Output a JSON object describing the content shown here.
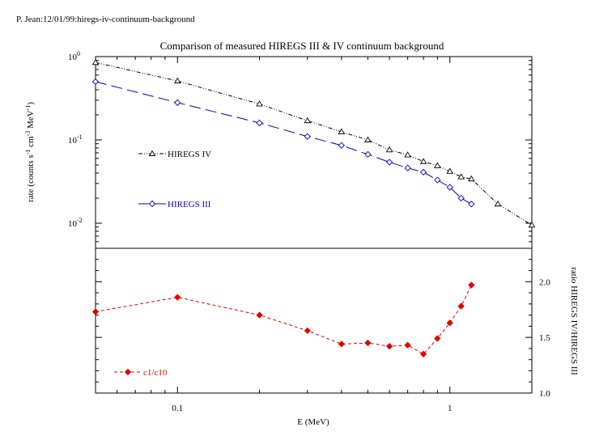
{
  "header_note": "P. Jean:12/01/99:hiregs-iv-continuum-background",
  "chart_data": [
    {
      "type": "line",
      "panel": "top",
      "title": "Comparison of measured HIREGS III & IV continuum background",
      "xlabel": "E (MeV)",
      "ylabel_main": "rate (counts s",
      "ylabel_sup1": "-1",
      "ylabel_mid1": " cm",
      "ylabel_sup2": "-3",
      "ylabel_mid2": " MeV",
      "ylabel_sup3": "-1",
      "ylabel_end": ")",
      "x_scale": "log",
      "y_scale": "log",
      "xlim": [
        0.05,
        2.0
      ],
      "ylim": [
        0.005,
        1.0
      ],
      "yticks": [
        {
          "base": "10",
          "exp": "0",
          "value": 1.0
        },
        {
          "base": "10",
          "exp": "-1",
          "value": 0.1
        },
        {
          "base": "10",
          "exp": "-2",
          "value": 0.01
        }
      ],
      "legend_placement": "center-left",
      "series": [
        {
          "name": "HIREGS IV",
          "color": "#000000",
          "marker": "triangle",
          "dash": "dash-dot",
          "x": [
            0.05,
            0.1,
            0.2,
            0.3,
            0.4,
            0.5,
            0.6,
            0.7,
            0.8,
            0.9,
            1.0,
            1.1,
            1.2,
            1.5,
            2.0
          ],
          "y": [
            0.85,
            0.51,
            0.27,
            0.17,
            0.125,
            0.1,
            0.076,
            0.066,
            0.055,
            0.049,
            0.042,
            0.036,
            0.034,
            0.017,
            0.0095
          ]
        },
        {
          "name": "HIREGS III",
          "color": "#0000cc",
          "marker": "diamond",
          "dash": "long-dash",
          "x": [
            0.05,
            0.1,
            0.2,
            0.3,
            0.4,
            0.5,
            0.6,
            0.7,
            0.8,
            0.9,
            1.0,
            1.1,
            1.2
          ],
          "y": [
            0.5,
            0.28,
            0.16,
            0.11,
            0.086,
            0.067,
            0.054,
            0.046,
            0.041,
            0.033,
            0.027,
            0.02,
            0.017
          ]
        }
      ]
    },
    {
      "type": "line",
      "panel": "bottom",
      "ylabel": "ratio HIREGS IV/HIREGS III",
      "xlabel": "E (MeV)",
      "x_scale": "log",
      "xlim": [
        0.05,
        2.0
      ],
      "ylim": [
        1.0,
        2.3
      ],
      "yticks": [
        {
          "label": "1.0",
          "value": 1.0
        },
        {
          "label": "1.5",
          "value": 1.5
        },
        {
          "label": "2.0",
          "value": 2.0
        }
      ],
      "xticks": [
        {
          "label": "0.1",
          "value": 0.1
        },
        {
          "label": "1",
          "value": 1.0
        }
      ],
      "legend_placement": "bottom-left",
      "series": [
        {
          "name": "c1/c10",
          "color": "#e00000",
          "marker": "filled-diamond",
          "dash": "dashed",
          "x": [
            0.05,
            0.1,
            0.2,
            0.3,
            0.4,
            0.5,
            0.6,
            0.7,
            0.8,
            0.9,
            1.0,
            1.1,
            1.2
          ],
          "y": [
            1.73,
            1.86,
            1.7,
            1.56,
            1.44,
            1.45,
            1.42,
            1.43,
            1.35,
            1.49,
            1.63,
            1.78,
            1.97
          ]
        }
      ]
    }
  ]
}
